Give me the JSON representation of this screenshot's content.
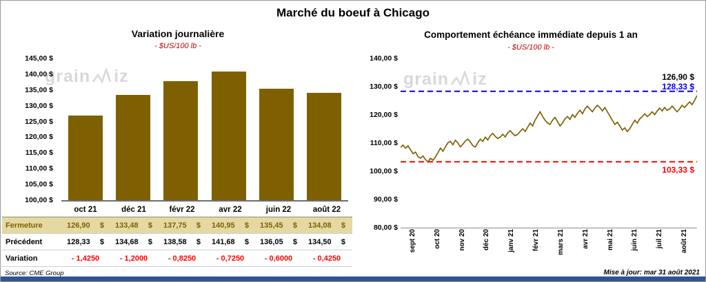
{
  "page": {
    "title": "Marché du boeuf à Chicago",
    "source": "Source: CME Group",
    "updated": "Mise à jour: mar 31 août 2021",
    "watermark_prefix": "grain",
    "watermark_suffix": "iz"
  },
  "colors": {
    "bar": "#7E6000",
    "line": "#7E6000",
    "blue_ref": "#0000EE",
    "red_ref": "#FF0000",
    "subtitle": "#C00000",
    "fermeture_bg": "#E5D9A2",
    "fermeture_text": "#7E6000",
    "variation_text": "#FF0000",
    "bottom_bar": "#2F5496",
    "watermark": "#D8D8D8"
  },
  "chart_data": [
    {
      "type": "bar",
      "title": "Variation journalière",
      "subtitle": "- $US/100 lb -",
      "categories": [
        "oct 21",
        "déc 21",
        "févr 22",
        "avr 22",
        "juin 22",
        "août 22"
      ],
      "values": [
        126.9,
        133.48,
        137.75,
        140.95,
        135.45,
        134.08
      ],
      "ylim": [
        100,
        145
      ],
      "ytick_step": 5,
      "ytick_labels": [
        "145,00 $",
        "140,00 $",
        "135,00 $",
        "130,00 $",
        "125,00 $",
        "120,00 $",
        "115,00 $",
        "110,00 $",
        "105,00 $",
        "100,00 $"
      ],
      "grid": false,
      "legend": "none"
    },
    {
      "type": "line",
      "title": "Comportement échéance immédiate depuis 1 an",
      "subtitle": "- $US/100 lb -",
      "x_labels": [
        "sept 20",
        "oct 20",
        "nov 20",
        "déc 20",
        "janv 21",
        "févr 21",
        "mars 21",
        "avr 21",
        "mai 21",
        "juin 21",
        "juil 21",
        "août 21"
      ],
      "ylim": [
        80,
        140
      ],
      "ytick_step": 10,
      "ytick_labels": [
        "140,00 $",
        "130,00 $",
        "120,00 $",
        "110,00 $",
        "100,00 $",
        "90,00 $",
        "80,00 $"
      ],
      "series": [
        {
          "name": "échéance immédiate",
          "values": [
            108.5,
            109.3,
            108.2,
            109.0,
            107.6,
            106.2,
            106.8,
            105.2,
            104.6,
            105.4,
            104.2,
            103.3,
            104.6,
            103.9,
            105.1,
            106.6,
            108.2,
            107.1,
            108.6,
            110.1,
            110.6,
            109.4,
            111.0,
            110.1,
            108.6,
            109.6,
            110.7,
            111.4,
            110.4,
            109.1,
            108.6,
            110.1,
            111.4,
            110.6,
            112.1,
            111.1,
            112.6,
            113.4,
            112.4,
            111.6,
            112.1,
            113.1,
            112.2,
            113.6,
            114.4,
            113.4,
            112.6,
            113.1,
            114.1,
            115.1,
            114.1,
            115.6,
            117.1,
            116.1,
            118.1,
            119.6,
            121.1,
            119.4,
            118.1,
            117.1,
            116.6,
            118.1,
            119.1,
            117.6,
            116.1,
            117.1,
            118.6,
            119.4,
            118.4,
            120.1,
            119.1,
            120.6,
            121.6,
            120.4,
            122.1,
            123.1,
            122.1,
            121.1,
            122.4,
            123.4,
            122.6,
            121.4,
            122.6,
            121.1,
            119.6,
            118.1,
            116.6,
            117.4,
            116.1,
            114.6,
            115.4,
            114.1,
            115.1,
            116.6,
            118.1,
            117.1,
            118.6,
            119.4,
            120.4,
            119.4,
            120.1,
            121.1,
            120.1,
            121.4,
            122.4,
            121.4,
            122.6,
            121.6,
            122.1,
            123.1,
            122.1,
            121.1,
            122.1,
            123.4,
            122.6,
            123.6,
            124.6,
            123.6,
            125.1,
            126.9
          ]
        }
      ],
      "ref_lines": [
        {
          "value": 128.33,
          "label": "128,33 $",
          "color": "#0000EE",
          "style": "dashed"
        },
        {
          "value": 103.33,
          "label": "103,33 $",
          "color": "#FF0000",
          "style": "dashed"
        }
      ],
      "last_value_label": "126,90 $",
      "grid": false,
      "legend": "none"
    }
  ],
  "table": {
    "currency": "$",
    "header": [
      "oct 21",
      "déc 21",
      "févr 22",
      "avr 22",
      "juin 22",
      "août 22"
    ],
    "rows": [
      {
        "label": "Fermeture",
        "accounting": true,
        "values": [
          "126,90",
          "133,48",
          "137,75",
          "140,95",
          "135,45",
          "134,08"
        ]
      },
      {
        "label": "Précédent",
        "accounting": true,
        "values": [
          "128,33",
          "134,68",
          "138,58",
          "141,68",
          "136,05",
          "134,50"
        ]
      },
      {
        "label": "Variation",
        "accounting": false,
        "values": [
          "- 1,4250",
          "- 1,2000",
          "- 0,8250",
          "- 0,7250",
          "- 0,6000",
          "- 0,4250"
        ]
      }
    ]
  }
}
